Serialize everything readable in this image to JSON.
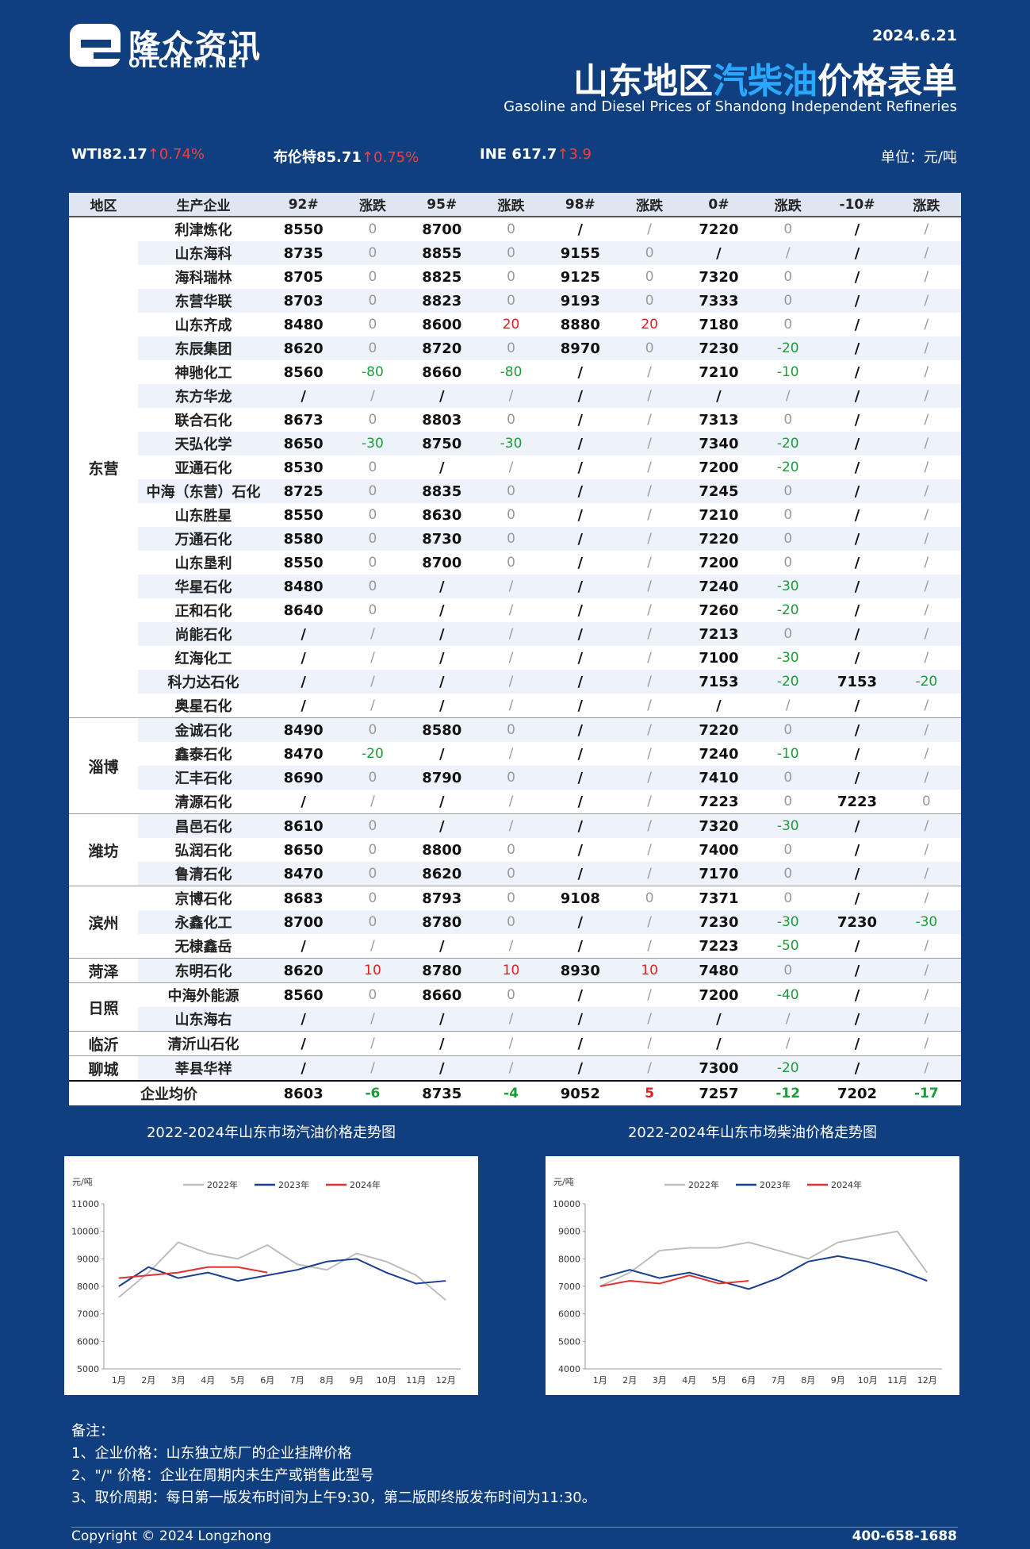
{
  "header": {
    "logo_cn": "隆众资讯",
    "logo_en": "OILCHEM.NET",
    "date": "2024.6.21",
    "title_a": "山东地区",
    "title_b": "汽柴油",
    "title_c": "价格表单",
    "subtitle": "Gasoline and Diesel Prices of Shandong Independent Refineries"
  },
  "ticker": [
    {
      "label": "WTI82.17",
      "change": "↑0.74%"
    },
    {
      "label": "布伦特85.71",
      "change": "↑0.75%"
    },
    {
      "label": "INE 617.7",
      "change": "↑3.9"
    }
  ],
  "unit": "单位：元/吨",
  "table": {
    "columns": [
      "地区",
      "生产企业",
      "92#",
      "涨跌",
      "95#",
      "涨跌",
      "98#",
      "涨跌",
      "0#",
      "涨跌",
      "-10#",
      "涨跌"
    ],
    "regions": [
      {
        "name": "东营",
        "rows": [
          [
            "利津炼化",
            8550,
            0,
            8700,
            0,
            "/",
            "/",
            7220,
            0,
            "/",
            "/"
          ],
          [
            "山东海科",
            8735,
            0,
            8855,
            0,
            9155,
            0,
            "/",
            "/",
            "/",
            "/"
          ],
          [
            "海科瑞林",
            8705,
            0,
            8825,
            0,
            9125,
            0,
            7320,
            0,
            "/",
            "/"
          ],
          [
            "东营华联",
            8703,
            0,
            8823,
            0,
            9193,
            0,
            7333,
            0,
            "/",
            "/"
          ],
          [
            "山东齐成",
            8480,
            0,
            8600,
            20,
            8880,
            20,
            7180,
            0,
            "/",
            "/"
          ],
          [
            "东辰集团",
            8620,
            0,
            8720,
            0,
            8970,
            0,
            7230,
            -20,
            "/",
            "/"
          ],
          [
            "神驰化工",
            8560,
            -80,
            8660,
            -80,
            "/",
            "/",
            7210,
            -10,
            "/",
            "/"
          ],
          [
            "东方华龙",
            "/",
            "/",
            "/",
            "/",
            "/",
            "/",
            "/",
            "/",
            "/",
            "/"
          ],
          [
            "联合石化",
            8673,
            0,
            8803,
            0,
            "/",
            "/",
            7313,
            0,
            "/",
            "/"
          ],
          [
            "天弘化学",
            8650,
            -30,
            8750,
            -30,
            "/",
            "/",
            7340,
            -20,
            "/",
            "/"
          ],
          [
            "亚通石化",
            8530,
            0,
            "/",
            "/",
            "/",
            "/",
            7200,
            -20,
            "/",
            "/"
          ],
          [
            "中海（东营）石化",
            8725,
            0,
            8835,
            0,
            "/",
            "/",
            7245,
            0,
            "/",
            "/"
          ],
          [
            "山东胜星",
            8550,
            0,
            8630,
            0,
            "/",
            "/",
            7210,
            0,
            "/",
            "/"
          ],
          [
            "万通石化",
            8580,
            0,
            8730,
            0,
            "/",
            "/",
            7220,
            0,
            "/",
            "/"
          ],
          [
            "山东垦利",
            8550,
            0,
            8700,
            0,
            "/",
            "/",
            7200,
            0,
            "/",
            "/"
          ],
          [
            "华星石化",
            8480,
            0,
            "/",
            "/",
            "/",
            "/",
            7240,
            -30,
            "/",
            "/"
          ],
          [
            "正和石化",
            8640,
            0,
            "/",
            "/",
            "/",
            "/",
            7260,
            -20,
            "/",
            "/"
          ],
          [
            "尚能石化",
            "/",
            "/",
            "/",
            "/",
            "/",
            "/",
            7213,
            0,
            "/",
            "/"
          ],
          [
            "红海化工",
            "/",
            "/",
            "/",
            "/",
            "/",
            "/",
            7100,
            -30,
            "/",
            "/"
          ],
          [
            "科力达石化",
            "/",
            "/",
            "/",
            "/",
            "/",
            "/",
            7153,
            -20,
            7153,
            -20
          ],
          [
            "奥星石化",
            "/",
            "/",
            "/",
            "/",
            "/",
            "/",
            "/",
            "/",
            "/",
            "/"
          ]
        ]
      },
      {
        "name": "淄博",
        "rows": [
          [
            "金诚石化",
            8490,
            0,
            8580,
            0,
            "/",
            "/",
            7220,
            0,
            "/",
            "/"
          ],
          [
            "鑫泰石化",
            8470,
            -20,
            "/",
            "/",
            "/",
            "/",
            7240,
            -10,
            "/",
            "/"
          ],
          [
            "汇丰石化",
            8690,
            0,
            8790,
            0,
            "/",
            "/",
            7410,
            0,
            "/",
            "/"
          ],
          [
            "清源石化",
            "/",
            "/",
            "/",
            "/",
            "/",
            "/",
            7223,
            0,
            7223,
            0
          ]
        ]
      },
      {
        "name": "潍坊",
        "rows": [
          [
            "昌邑石化",
            8610,
            0,
            "/",
            "/",
            "/",
            "/",
            7320,
            -30,
            "/",
            "/"
          ],
          [
            "弘润石化",
            8650,
            0,
            8800,
            0,
            "/",
            "/",
            7400,
            0,
            "/",
            "/"
          ],
          [
            "鲁清石化",
            8470,
            0,
            8620,
            0,
            "/",
            "/",
            7170,
            0,
            "/",
            "/"
          ]
        ]
      },
      {
        "name": "滨州",
        "rows": [
          [
            "京博石化",
            8683,
            0,
            8793,
            0,
            9108,
            0,
            7371,
            0,
            "/",
            "/"
          ],
          [
            "永鑫化工",
            8700,
            0,
            8780,
            0,
            "/",
            "/",
            7230,
            -30,
            7230,
            -30
          ],
          [
            "无棣鑫岳",
            "/",
            "/",
            "/",
            "/",
            "/",
            "/",
            7223,
            -50,
            "/",
            "/"
          ]
        ]
      },
      {
        "name": "菏泽",
        "rows": [
          [
            "东明石化",
            8620,
            10,
            8780,
            10,
            8930,
            10,
            7480,
            0,
            "/",
            "/"
          ]
        ]
      },
      {
        "name": "日照",
        "rows": [
          [
            "中海外能源",
            8560,
            0,
            8660,
            0,
            "/",
            "/",
            7200,
            -40,
            "/",
            "/"
          ],
          [
            "山东海右",
            "/",
            "/",
            "/",
            "/",
            "/",
            "/",
            "/",
            "/",
            "/",
            "/"
          ]
        ]
      },
      {
        "name": "临沂",
        "rows": [
          [
            "清沂山石化",
            "/",
            "/",
            "/",
            "/",
            "/",
            "/",
            "/",
            "/",
            "/",
            "/"
          ]
        ]
      },
      {
        "name": "聊城",
        "rows": [
          [
            "莘县华祥",
            "/",
            "/",
            "/",
            "/",
            "/",
            "/",
            7300,
            -20,
            "/",
            "/"
          ]
        ]
      }
    ],
    "average": [
      "企业均价",
      8603,
      -6,
      8735,
      -4,
      9052,
      5,
      7257,
      -12,
      7202,
      -17
    ]
  },
  "chart_data": [
    {
      "type": "line",
      "title": "2022-2024年山东市场汽油价格走势图",
      "y_label": "元/吨",
      "categories": [
        "1月",
        "2月",
        "3月",
        "4月",
        "5月",
        "6月",
        "7月",
        "8月",
        "9月",
        "10月",
        "11月",
        "12月"
      ],
      "ylim": [
        5000,
        11000
      ],
      "yticks": [
        5000,
        6000,
        7000,
        8000,
        9000,
        10000,
        11000
      ],
      "series": [
        {
          "name": "2022年",
          "color": "#bdbdbd",
          "values": [
            7600,
            8500,
            9600,
            9200,
            9000,
            9500,
            8800,
            8600,
            9200,
            8900,
            8400,
            7500
          ]
        },
        {
          "name": "2023年",
          "color": "#1a3f8f",
          "values": [
            8000,
            8700,
            8300,
            8500,
            8200,
            8400,
            8600,
            8900,
            9000,
            8500,
            8100,
            8200
          ]
        },
        {
          "name": "2024年",
          "color": "#e03030",
          "values": [
            8300,
            8400,
            8500,
            8700,
            8700,
            8500,
            null,
            null,
            null,
            null,
            null,
            null
          ]
        }
      ]
    },
    {
      "type": "line",
      "title": "2022-2024年山东市场柴油价格走势图",
      "y_label": "元/吨",
      "categories": [
        "1月",
        "2月",
        "3月",
        "4月",
        "5月",
        "6月",
        "7月",
        "8月",
        "9月",
        "10月",
        "11月",
        "12月"
      ],
      "ylim": [
        4000,
        10000
      ],
      "yticks": [
        4000,
        5000,
        6000,
        7000,
        8000,
        9000,
        10000
      ],
      "series": [
        {
          "name": "2022年",
          "color": "#bdbdbd",
          "values": [
            7000,
            7500,
            8300,
            8400,
            8400,
            8600,
            8300,
            8000,
            8600,
            8800,
            9000,
            7500
          ]
        },
        {
          "name": "2023年",
          "color": "#1a3f8f",
          "values": [
            7300,
            7600,
            7300,
            7500,
            7200,
            6900,
            7300,
            7900,
            8100,
            7900,
            7600,
            7200
          ]
        },
        {
          "name": "2024年",
          "color": "#e03030",
          "values": [
            7000,
            7200,
            7100,
            7400,
            7100,
            7200,
            null,
            null,
            null,
            null,
            null,
            null
          ]
        }
      ]
    }
  ],
  "notes": {
    "title": "备注：",
    "items": [
      "1、企业价格：山东独立炼厂的企业挂牌价格",
      "2、\"/\" 价格：企业在周期内未生产或销售此型号",
      "3、取价周期：每日第一版发布时间为上午9:30，第二版即终版发布时间为11:30。"
    ]
  },
  "footer": {
    "copyright": "Copyright © 2024 Longzhong",
    "phone": "400-658-1688"
  }
}
